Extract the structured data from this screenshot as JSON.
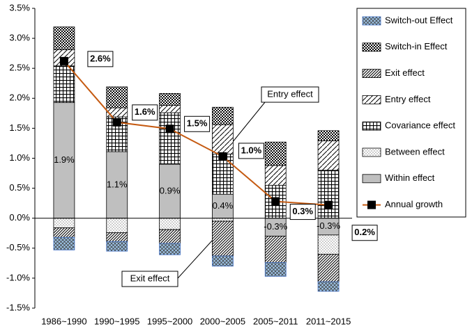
{
  "chart_data": {
    "type": "stacked-bar-line",
    "categories": [
      "1986~1990",
      "1990~1995",
      "1995~2000",
      "2000~2005",
      "2005~2011",
      "2011~2015"
    ],
    "series": [
      {
        "name": "Within effect",
        "color": "#bfbfbf",
        "values": [
          1.93,
          1.11,
          0.9,
          0.4,
          -0.3,
          -0.28
        ],
        "value_labels": [
          "1.9%",
          "1.1%",
          "0.9%",
          "0.4%",
          "-0.3%",
          "-0.3%"
        ]
      },
      {
        "name": "Between effect",
        "color": "#ffffff",
        "values": [
          -0.16,
          -0.24,
          -0.19,
          -0.05,
          0,
          -0.32
        ]
      },
      {
        "name": "Covariance effect",
        "color": "#ffffff",
        "values": [
          0.61,
          0.58,
          0.86,
          0.67,
          0.55,
          0.8
        ]
      },
      {
        "name": "Entry effect",
        "color": "#ffffff",
        "values": [
          0.27,
          0.15,
          0.12,
          0.49,
          0.33,
          0.49
        ]
      },
      {
        "name": "Exit effect",
        "color": "#ffffff",
        "values": [
          -0.16,
          -0.15,
          -0.23,
          -0.58,
          -0.44,
          -0.46
        ]
      },
      {
        "name": "Switch-in Effect",
        "color": "#000000",
        "values": [
          0.38,
          0.35,
          0.2,
          0.29,
          0.39,
          0.17
        ]
      },
      {
        "name": "Switch-out Effect",
        "color": "#9dc3e6",
        "values": [
          -0.21,
          -0.16,
          -0.19,
          -0.17,
          -0.23,
          -0.16
        ]
      },
      {
        "name": "Annual growth",
        "type": "line",
        "color": "#c55a11",
        "values": [
          2.62,
          1.6,
          1.49,
          1.03,
          0.28,
          0.22
        ],
        "value_labels": [
          "2.6%",
          "1.6%",
          "1.5%",
          "1.0%",
          "0.3%",
          "0.2%"
        ]
      }
    ],
    "ylim": [
      -1.5,
      3.5
    ],
    "yticks": [
      {
        "value": -1.5,
        "label": "-1.5%"
      },
      {
        "value": -1.0,
        "label": "-1.0%"
      },
      {
        "value": -0.5,
        "label": "-0.5%"
      },
      {
        "value": 0,
        "label": "0.0%"
      },
      {
        "value": 0.5,
        "label": "0.5%"
      },
      {
        "value": 1.0,
        "label": "1.0%"
      },
      {
        "value": 1.5,
        "label": "1.5%"
      },
      {
        "value": 2.0,
        "label": "2.0%"
      },
      {
        "value": 2.5,
        "label": "2.5%"
      },
      {
        "value": 3.0,
        "label": "3.0%"
      },
      {
        "value": 3.5,
        "label": "3.5%"
      }
    ],
    "annotations": [
      "Entry effect",
      "Exit effect"
    ],
    "grid": false,
    "legend": "right"
  }
}
